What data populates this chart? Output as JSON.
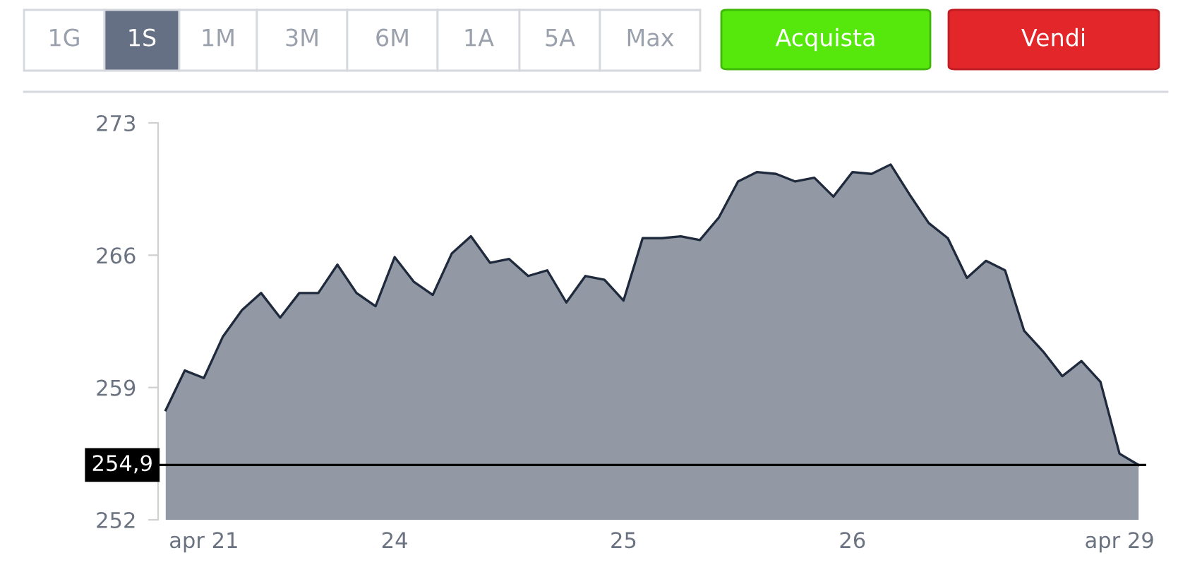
{
  "chart_data": {
    "type": "area",
    "categories": [
      null,
      null,
      "apr 21",
      null,
      null,
      null,
      null,
      null,
      null,
      null,
      null,
      null,
      "24",
      null,
      null,
      null,
      null,
      null,
      null,
      null,
      null,
      null,
      null,
      null,
      "25",
      null,
      null,
      null,
      null,
      null,
      null,
      null,
      null,
      null,
      null,
      null,
      "26",
      null,
      null,
      null,
      null,
      null,
      null,
      null,
      null,
      null,
      null,
      null,
      null,
      null,
      "apr 29",
      null
    ],
    "series": [
      {
        "color": "#1f2a3c",
        "values": [
          257.8,
          259.9,
          259.5,
          261.7,
          263.1,
          264.0,
          262.7,
          264.0,
          264.0,
          265.5,
          264.0,
          263.3,
          265.9,
          264.6,
          263.9,
          266.1,
          267.0,
          265.6,
          265.8,
          264.9,
          265.2,
          263.5,
          264.9,
          264.7,
          263.6,
          266.9,
          266.9,
          267.0,
          266.8,
          268.0,
          269.9,
          270.4,
          270.3,
          269.9,
          270.1,
          269.1,
          270.4,
          270.3,
          270.8,
          269.2,
          267.7,
          266.9,
          264.8,
          265.7,
          265.2,
          262.0,
          260.9,
          259.6,
          260.4,
          259.3,
          255.5,
          254.9
        ]
      }
    ],
    "ylim": [
      252,
      273
    ],
    "yticks": [
      252,
      259,
      266,
      273
    ],
    "ref_lines": [
      {
        "axis": "y",
        "value": 254.9,
        "label": "254,9",
        "color": "#000000"
      }
    ],
    "annotations": [
      "1G",
      "1S",
      "1M",
      "3M",
      "6M",
      "1A",
      "5A",
      "Max",
      "Acquista",
      "Vendi"
    ],
    "grid": false,
    "legend": false
  }
}
